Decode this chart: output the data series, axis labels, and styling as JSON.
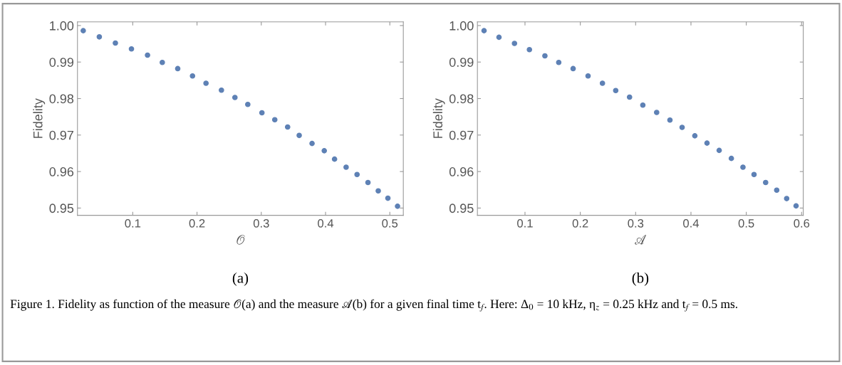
{
  "chart_data": [
    {
      "type": "scatter",
      "xlabel": "𝒪",
      "ylabel": "Fidelity",
      "marker": "circle",
      "grid": false,
      "annotations": [
        "(a)",
        "Figure 1. Fidelity as function of the measure 𝒪(a) and the measure 𝒜(b) for a given final time t$_{f}$. Here: Δ$_{0}$ = 10 kHz, η$_{z}$ = 0.25 kHz and t$_{f}$ = 0.5 ms."
      ],
      "xlim": [
        0.014,
        0.521
      ],
      "ylim": [
        0.948,
        1.001
      ],
      "xticks": [
        0.1,
        0.2,
        0.3,
        0.4,
        0.5
      ],
      "yticks": [
        {
          "value": 0.95,
          "label": "0.95"
        },
        {
          "value": 0.96,
          "label": "0.96"
        },
        {
          "value": 0.97,
          "label": "0.97"
        },
        {
          "value": 0.98,
          "label": "0.98"
        },
        {
          "value": 0.99,
          "label": "0.99"
        },
        {
          "value": 1.0,
          "label": "1.00"
        }
      ],
      "series": [
        {
          "color": "#5e81b5",
          "x": [
            0.023,
            0.048,
            0.073,
            0.098,
            0.123,
            0.146,
            0.17,
            0.193,
            0.214,
            0.238,
            0.259,
            0.279,
            0.301,
            0.321,
            0.341,
            0.359,
            0.379,
            0.398,
            0.414,
            0.432,
            0.449,
            0.466,
            0.482,
            0.497,
            0.512
          ],
          "values": [
            0.9986,
            0.9969,
            0.9952,
            0.9936,
            0.9919,
            0.9899,
            0.9882,
            0.9862,
            0.9842,
            0.9823,
            0.9803,
            0.9784,
            0.9761,
            0.9742,
            0.9722,
            0.9699,
            0.9677,
            0.9657,
            0.9634,
            0.9612,
            0.9592,
            0.957,
            0.9547,
            0.9527,
            0.9505
          ]
        }
      ]
    },
    {
      "type": "scatter",
      "xlabel": "𝒜",
      "ylabel": "Fidelity",
      "marker": "circle",
      "grid": false,
      "annotations": [
        "(b)"
      ],
      "xlim": [
        0.014,
        0.603
      ],
      "ylim": [
        0.948,
        1.001
      ],
      "xticks": [
        0.1,
        0.2,
        0.3,
        0.4,
        0.5,
        0.6
      ],
      "yticks": [
        {
          "value": 0.95,
          "label": "0.95"
        },
        {
          "value": 0.96,
          "label": "0.96"
        },
        {
          "value": 0.97,
          "label": "0.97"
        },
        {
          "value": 0.98,
          "label": "0.98"
        },
        {
          "value": 0.99,
          "label": "0.99"
        },
        {
          "value": 1.0,
          "label": "1.00"
        }
      ],
      "series": [
        {
          "color": "#5e81b5",
          "x": [
            0.026,
            0.053,
            0.081,
            0.108,
            0.136,
            0.161,
            0.187,
            0.214,
            0.24,
            0.264,
            0.289,
            0.313,
            0.338,
            0.362,
            0.384,
            0.407,
            0.429,
            0.451,
            0.473,
            0.494,
            0.514,
            0.535,
            0.555,
            0.573,
            0.59
          ],
          "values": [
            0.9986,
            0.9968,
            0.9951,
            0.9934,
            0.9917,
            0.9899,
            0.9882,
            0.9862,
            0.9842,
            0.9822,
            0.9804,
            0.9782,
            0.9762,
            0.9741,
            0.9721,
            0.9698,
            0.9678,
            0.9658,
            0.9636,
            0.9612,
            0.9592,
            0.957,
            0.9549,
            0.9526,
            0.9506
          ]
        }
      ]
    }
  ]
}
